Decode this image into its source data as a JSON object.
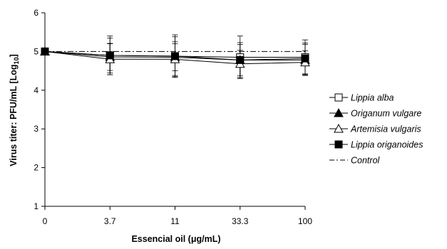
{
  "chart_data": {
    "type": "line",
    "xlabel": "Essencial oil (μg/mL)",
    "ylabel_main": "Virus titer: PFU/mL [Log",
    "ylabel_sub": "10",
    "ylabel_end": "]",
    "categories": [
      "0",
      "3.7",
      "11",
      "33.3",
      "100"
    ],
    "ylim": [
      1,
      6
    ],
    "yticks": [
      "1",
      "2",
      "3",
      "4",
      "5",
      "6"
    ],
    "grid": false,
    "legend_position": "right",
    "series": [
      {
        "name": "Lippia alba",
        "marker": "square-open",
        "line": "solid",
        "values": [
          5.0,
          4.9,
          4.88,
          4.85,
          4.85
        ],
        "err": [
          0,
          0.45,
          0.5,
          0.55,
          0.45
        ]
      },
      {
        "name": "Origanum vulgare",
        "marker": "triangle-filled",
        "line": "solid",
        "values": [
          5.0,
          4.86,
          4.85,
          4.78,
          4.78
        ],
        "err": [
          0,
          0.35,
          0.35,
          0.4,
          0.4
        ]
      },
      {
        "name": "Artemisia vulgaris",
        "marker": "triangle-open",
        "line": "solid",
        "values": [
          5.0,
          4.8,
          4.8,
          4.68,
          4.72
        ],
        "err": [
          0,
          0.4,
          0.45,
          0.35,
          0.3
        ]
      },
      {
        "name": "Lippia origanoides",
        "marker": "square-filled",
        "line": "solid",
        "values": [
          5.0,
          4.9,
          4.88,
          4.78,
          4.82
        ],
        "err": [
          0,
          0.5,
          0.55,
          0.45,
          0.4
        ]
      },
      {
        "name": "Control",
        "marker": "none",
        "line": "dashdot",
        "values": [
          5.0,
          5.0,
          5.0,
          5.0,
          5.0
        ],
        "err": [
          0,
          0,
          0,
          0,
          0
        ]
      }
    ]
  }
}
